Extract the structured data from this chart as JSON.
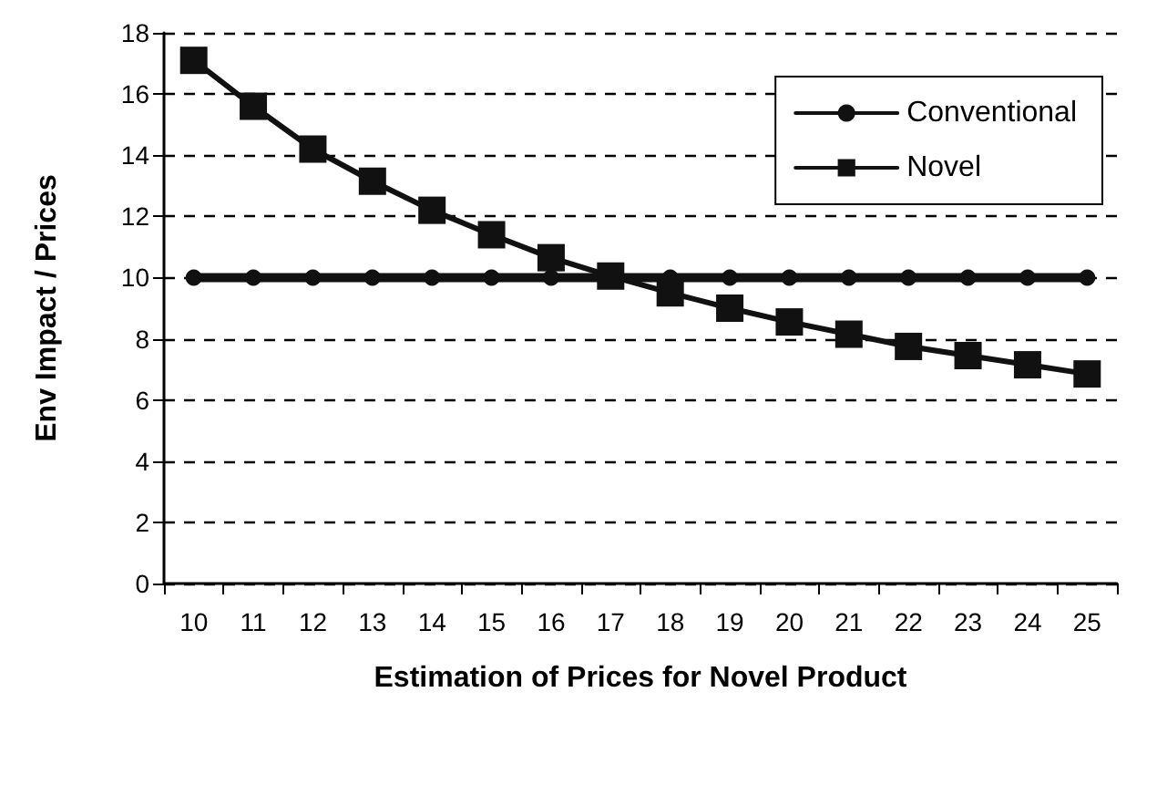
{
  "chart_data": {
    "type": "line",
    "xlabel": "Estimation of Prices for Novel Product",
    "ylabel": "Env Impact / Prices",
    "categories": [
      "10",
      "11",
      "12",
      "13",
      "14",
      "15",
      "16",
      "17",
      "18",
      "19",
      "20",
      "21",
      "22",
      "23",
      "24",
      "25"
    ],
    "series": [
      {
        "name": "Conventional",
        "color": "#111111",
        "marker": "circle",
        "values": [
          10,
          10,
          10,
          10,
          10,
          10,
          10,
          10,
          10,
          10,
          10,
          10,
          10,
          10,
          10,
          10
        ]
      },
      {
        "name": "Novel",
        "color": "#111111",
        "marker": "square",
        "values": [
          17.1,
          15.6,
          14.2,
          13.15,
          12.2,
          11.4,
          10.65,
          10.05,
          9.5,
          9.0,
          8.55,
          8.15,
          7.75,
          7.45,
          7.15,
          6.85
        ]
      }
    ],
    "ylim": [
      0,
      18
    ],
    "yticks": [
      0,
      2,
      4,
      6,
      8,
      10,
      12,
      14,
      16,
      18
    ],
    "grid": "y",
    "legend": "top right",
    "line_style": "solid"
  }
}
